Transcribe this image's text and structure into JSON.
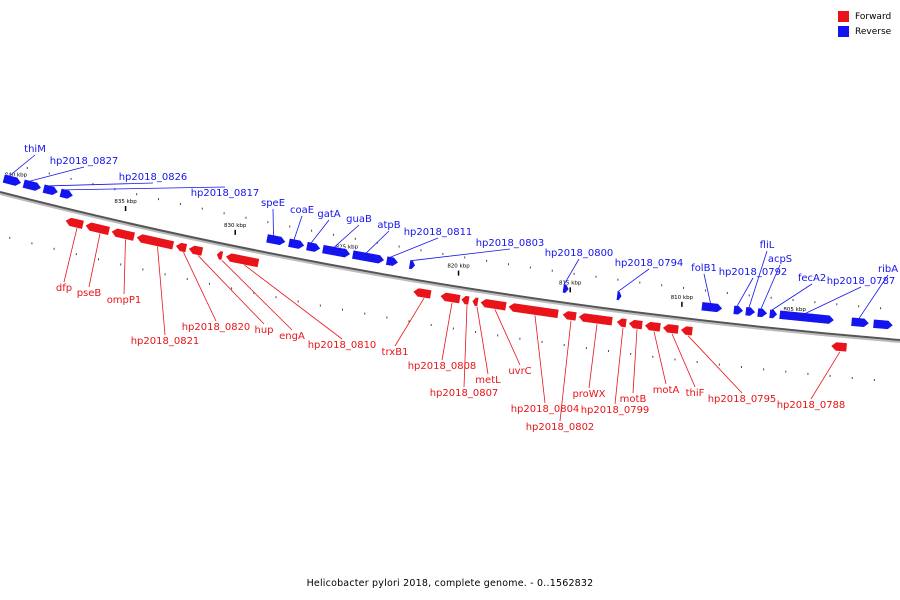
{
  "colors": {
    "forward": "#e8141a",
    "reverse": "#1414ee",
    "backbone": "#555555"
  },
  "legend": [
    {
      "label": "Forward",
      "color": "#e8141a"
    },
    {
      "label": "Reverse",
      "color": "#1414ee"
    }
  ],
  "caption": "Helicobacter pylori 2018, complete genome. - 0..1562832",
  "scale_labels": [
    "840 kbp",
    "835 kbp",
    "830 kbp",
    "825 kbp",
    "820 kbp",
    "815 kbp",
    "810 kbp",
    "805 kbp"
  ],
  "genes_reverse": [
    "thiM",
    "hp2018_0827",
    "hp2018_0826",
    "hp2018_0817",
    "speE",
    "coaE",
    "gatA",
    "guaB",
    "atpB",
    "hp2018_0811",
    "hp2018_0803",
    "hp2018_0800",
    "hp2018_0794",
    "folB1",
    "hp2018_0792",
    "fliL",
    "acpS",
    "fecA2",
    "hp2018_0787",
    "ribA"
  ],
  "genes_forward": [
    "dfp",
    "pseB",
    "ompP1",
    "hp2018_0821",
    "hp2018_0820",
    "hup",
    "engA",
    "hp2018_0810",
    "trxB1",
    "hp2018_0808",
    "hp2018_0807",
    "metL",
    "uvrC",
    "hp2018_0804",
    "hp2018_0802",
    "proWX",
    "hp2018_0799",
    "motB",
    "motA",
    "thiF",
    "hp2018_0795",
    "hp2018_0788"
  ]
}
